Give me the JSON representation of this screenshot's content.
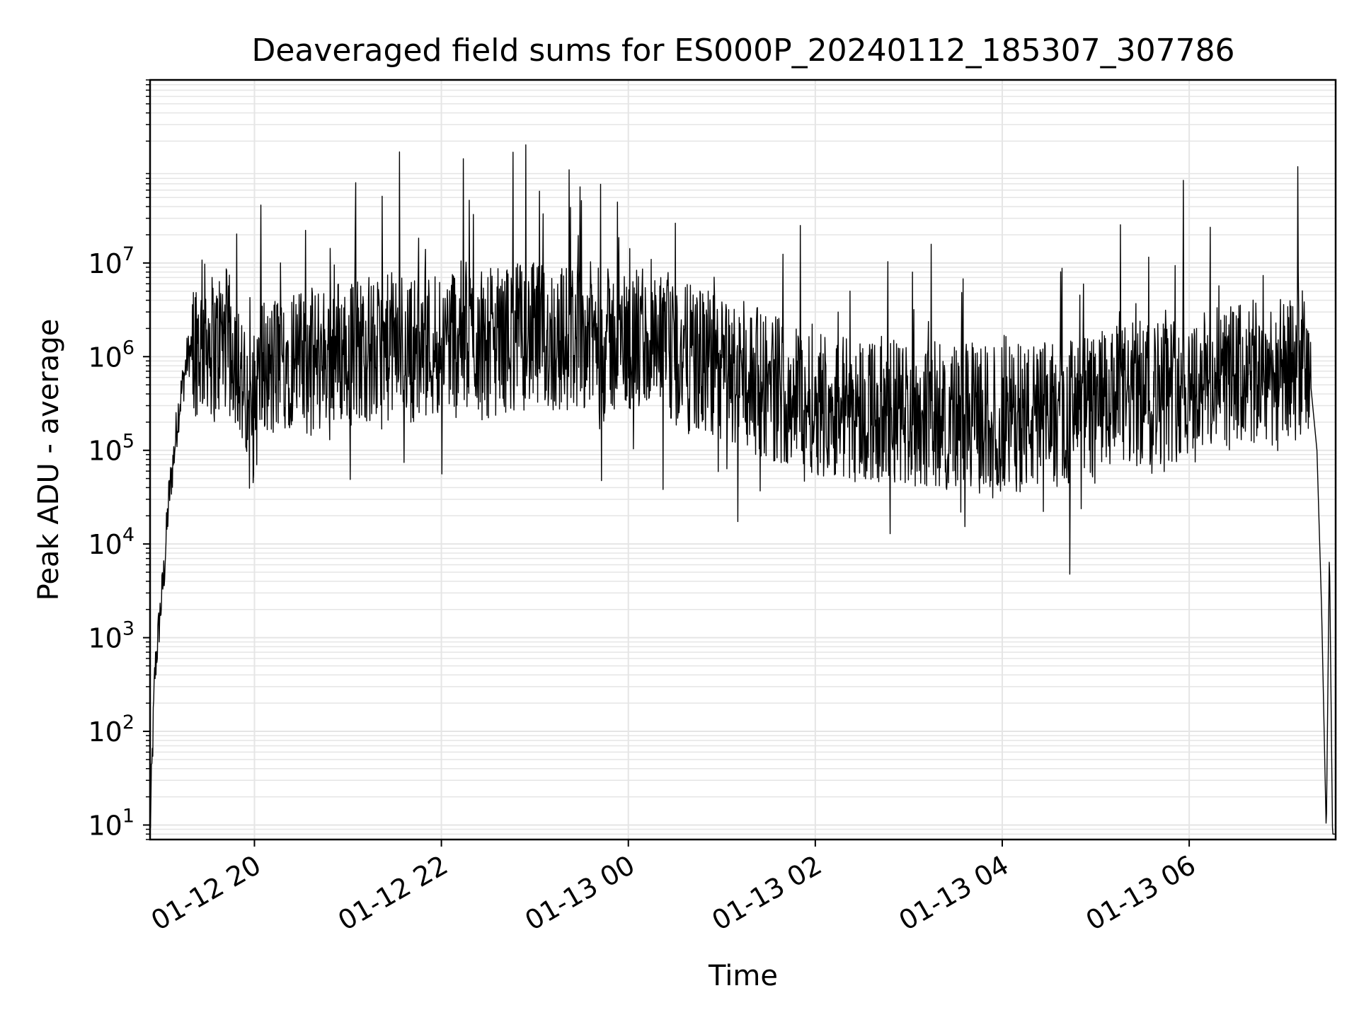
{
  "chart_data": {
    "type": "line",
    "title": "Deaveraged field sums for ES000P_20240112_185307_307786",
    "xlabel": "Time",
    "ylabel": "Peak ADU - average",
    "y_scale": "log",
    "ylim": [
      7,
      900000000
    ],
    "xlim": [
      "2024-01-12 18:53",
      "2024-01-13 07:34"
    ],
    "grid": true,
    "line_color": "#000000",
    "grid_color": "#e5e5e5",
    "x_ticks": [
      {
        "x": "2024-01-12 20:00",
        "label": "01-12 20"
      },
      {
        "x": "2024-01-12 22:00",
        "label": "01-12 22"
      },
      {
        "x": "2024-01-13 00:00",
        "label": "01-13 00"
      },
      {
        "x": "2024-01-13 02:00",
        "label": "01-13 02"
      },
      {
        "x": "2024-01-13 04:00",
        "label": "01-13 04"
      },
      {
        "x": "2024-01-13 06:00",
        "label": "01-13 06"
      }
    ],
    "y_ticks": [
      {
        "value": 10,
        "base": "10",
        "exp": "1"
      },
      {
        "value": 100,
        "base": "10",
        "exp": "2"
      },
      {
        "value": 1000,
        "base": "10",
        "exp": "3"
      },
      {
        "value": 10000,
        "base": "10",
        "exp": "4"
      },
      {
        "value": 100000,
        "base": "10",
        "exp": "5"
      },
      {
        "value": 1000000,
        "base": "10",
        "exp": "6"
      },
      {
        "value": 10000000,
        "base": "10",
        "exp": "7"
      }
    ],
    "series": [
      {
        "x": [
          "2024-01-12 18:53",
          "2024-01-12 18:56",
          "2024-01-12 18:59",
          "2024-01-12 19:02",
          "2024-01-12 19:05",
          "2024-01-12 19:08",
          "2024-01-12 19:11",
          "2024-01-12 19:14",
          "2024-01-12 19:17",
          "2024-01-12 19:20",
          "2024-01-12 19:23",
          "2024-01-12 19:26",
          "2024-01-12 19:29",
          "2024-01-12 19:32",
          "2024-01-12 19:35",
          "2024-01-12 19:38",
          "2024-01-12 19:41",
          "2024-01-12 19:44",
          "2024-01-12 19:47",
          "2024-01-12 19:50",
          "2024-01-12 19:53",
          "2024-01-12 19:56",
          "2024-01-12 20:00",
          "2024-01-12 20:05",
          "2024-01-12 20:10",
          "2024-01-12 20:15",
          "2024-01-12 20:20",
          "2024-01-12 20:25",
          "2024-01-12 20:30",
          "2024-01-12 20:40",
          "2024-01-12 20:50",
          "2024-01-12 21:00",
          "2024-01-12 21:10",
          "2024-01-12 21:20",
          "2024-01-12 21:30",
          "2024-01-12 21:40",
          "2024-01-12 21:50",
          "2024-01-12 22:00",
          "2024-01-12 22:10",
          "2024-01-12 22:20",
          "2024-01-12 22:30",
          "2024-01-12 22:40",
          "2024-01-12 22:50",
          "2024-01-12 23:00",
          "2024-01-12 23:15",
          "2024-01-12 23:30",
          "2024-01-12 23:45",
          "2024-01-13 00:00",
          "2024-01-13 00:15",
          "2024-01-13 00:30",
          "2024-01-13 00:45",
          "2024-01-13 01:00",
          "2024-01-13 01:15",
          "2024-01-13 01:30",
          "2024-01-13 01:45",
          "2024-01-13 02:00",
          "2024-01-13 02:15",
          "2024-01-13 02:30",
          "2024-01-13 02:45",
          "2024-01-13 03:00",
          "2024-01-13 03:15",
          "2024-01-13 03:30",
          "2024-01-13 03:45",
          "2024-01-13 04:00",
          "2024-01-13 04:15",
          "2024-01-13 04:30",
          "2024-01-13 04:45",
          "2024-01-13 05:00",
          "2024-01-13 05:15",
          "2024-01-13 05:30",
          "2024-01-13 05:45",
          "2024-01-13 06:00",
          "2024-01-13 06:15",
          "2024-01-13 06:30",
          "2024-01-13 06:45",
          "2024-01-13 06:55",
          "2024-01-13 07:05",
          "2024-01-13 07:12",
          "2024-01-13 07:18",
          "2024-01-13 07:22",
          "2024-01-13 07:25",
          "2024-01-13 07:28",
          "2024-01-13 07:30",
          "2024-01-13 07:32",
          "2024-01-13 07:34"
        ],
        "values": [
          8,
          400,
          1500,
          5000,
          30000,
          80000,
          250000,
          500000,
          1000000,
          1200000,
          1500000,
          1300000,
          1800000,
          1400000,
          1100000,
          1500000,
          1600000,
          1200000,
          1300000,
          900000,
          400000,
          150000,
          300000,
          800000,
          600000,
          900000,
          1000000,
          1100000,
          800000,
          900000,
          1200000,
          1100000,
          1300000,
          1000000,
          1400000,
          1200000,
          1300000,
          1500000,
          1800000,
          1600000,
          1400000,
          1500000,
          1700000,
          1600000,
          1500000,
          1800000,
          1400000,
          1500000,
          1200000,
          1000000,
          900000,
          700000,
          600000,
          500000,
          400000,
          350000,
          300000,
          280000,
          260000,
          250000,
          240000,
          230000,
          220000,
          210000,
          220000,
          240000,
          260000,
          300000,
          350000,
          400000,
          450000,
          500000,
          550000,
          600000,
          650000,
          700000,
          650000,
          900000,
          500000,
          100000,
          2000,
          8,
          9000,
          8,
          8
        ]
      }
    ],
    "annotations": []
  }
}
